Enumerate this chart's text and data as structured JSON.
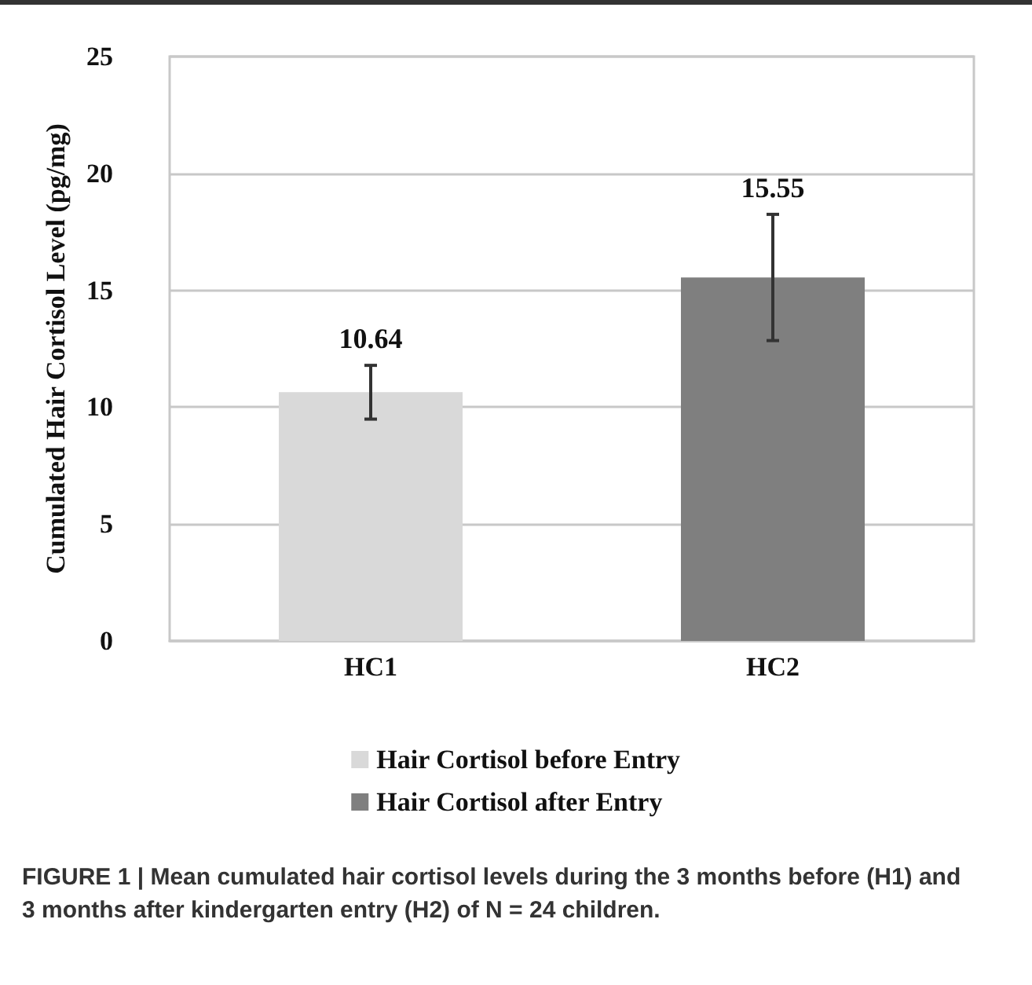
{
  "chart_data": {
    "type": "bar",
    "ylabel": "Cumulated Hair Cortisol Level (pg/mg)",
    "categories": [
      "HC1",
      "HC2"
    ],
    "series": [
      {
        "name": "Hair Cortisol before Entry",
        "color": "#d9d9d9",
        "values": [
          10.64,
          null
        ],
        "errors": [
          1.15,
          null
        ]
      },
      {
        "name": "Hair Cortisol after Entry",
        "color": "#7f7f7f",
        "values": [
          null,
          15.55
        ],
        "errors": [
          null,
          2.7
        ]
      }
    ],
    "ylim": [
      0,
      25
    ],
    "yticks": [
      0,
      5,
      10,
      15,
      20,
      25
    ],
    "grid": "y",
    "legend": "bottom",
    "data_labels": true,
    "annotations": [
      "FIGURE 1 | Mean cumulated hair cortisol levels during the 3 months before (H1) and 3 months after kindergarten entry (H2) of N = 24 children."
    ]
  }
}
